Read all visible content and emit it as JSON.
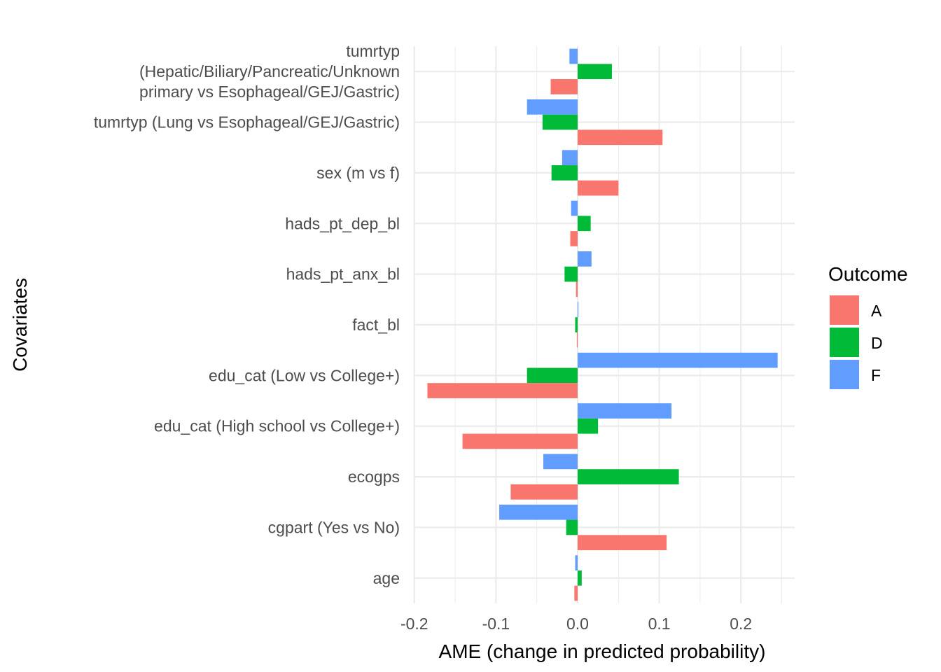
{
  "chart_data": {
    "type": "bar",
    "orientation": "horizontal",
    "xlabel": "AME (change in predicted probability)",
    "ylabel": "Covariates",
    "xlim": [
      -0.2,
      0.25
    ],
    "xticks": [
      {
        "value": -0.2,
        "label": "-0.2"
      },
      {
        "value": -0.1,
        "label": "-0.1"
      },
      {
        "value": 0.0,
        "label": "0.0"
      },
      {
        "value": 0.1,
        "label": "0.1"
      },
      {
        "value": 0.2,
        "label": "0.2"
      }
    ],
    "grid": true,
    "legend": {
      "title": "Outcome",
      "position": "right"
    },
    "categories": [
      {
        "label": [
          "tumrtyp",
          "(Hepatic/Biliary/Pancreatic/Unknown",
          "primary vs Esophageal/GEJ/Gastric)"
        ]
      },
      {
        "label": [
          "tumrtyp (Lung vs Esophageal/GEJ/Gastric)"
        ]
      },
      {
        "label": [
          "sex (m vs f)"
        ]
      },
      {
        "label": [
          "hads_pt_dep_bl"
        ]
      },
      {
        "label": [
          "hads_pt_anx_bl"
        ]
      },
      {
        "label": [
          "fact_bl"
        ]
      },
      {
        "label": [
          "edu_cat (Low vs College+)"
        ]
      },
      {
        "label": [
          "edu_cat (High school vs College+)"
        ]
      },
      {
        "label": [
          "ecogps"
        ]
      },
      {
        "label": [
          "cgpart (Yes vs No)"
        ]
      },
      {
        "label": [
          "age"
        ]
      }
    ],
    "series": [
      {
        "name": "A",
        "color": "#F8766D",
        "values": [
          -0.033,
          0.104,
          0.05,
          -0.009,
          -0.002,
          -0.001,
          -0.184,
          -0.141,
          -0.082,
          0.109,
          -0.004
        ]
      },
      {
        "name": "D",
        "color": "#00BA38",
        "values": [
          0.042,
          -0.043,
          -0.032,
          0.016,
          -0.016,
          -0.003,
          -0.062,
          0.025,
          0.124,
          -0.014,
          0.005
        ]
      },
      {
        "name": "F",
        "color": "#619CFF",
        "values": [
          -0.01,
          -0.062,
          -0.019,
          -0.008,
          0.017,
          0.001,
          0.245,
          0.115,
          -0.042,
          -0.096,
          -0.003
        ]
      }
    ]
  }
}
